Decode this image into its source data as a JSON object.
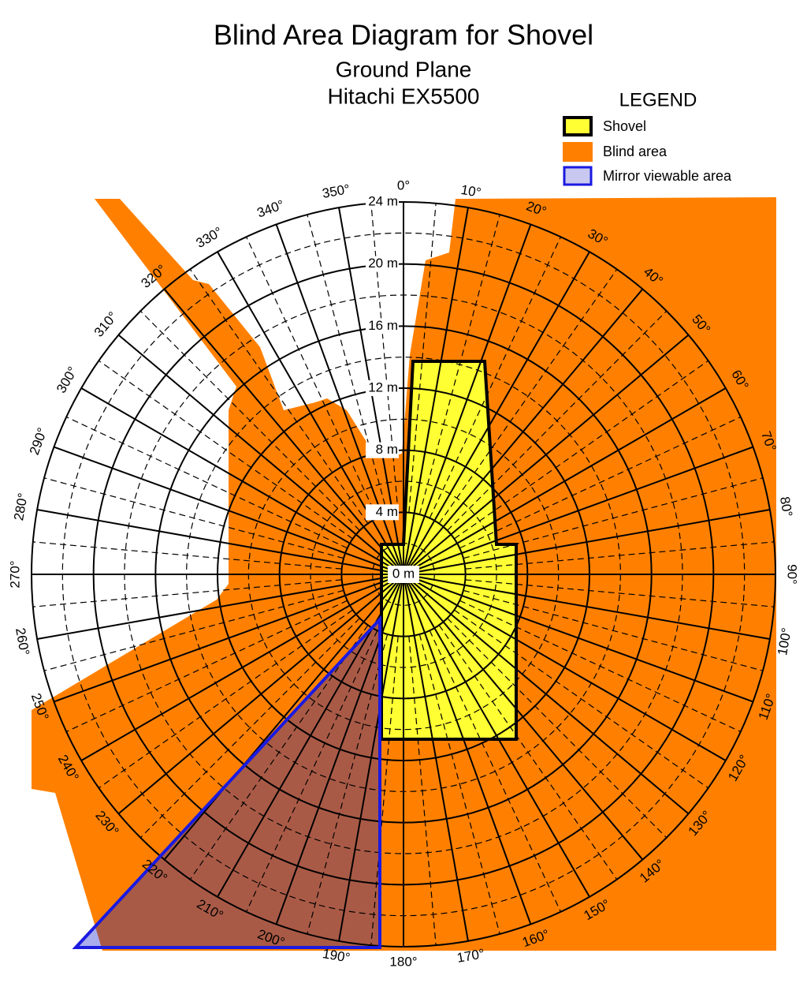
{
  "title": "Blind Area Diagram for Shovel",
  "subtitle": [
    "Ground Plane",
    "Hitachi EX5500"
  ],
  "legend": {
    "title": "LEGEND",
    "items": [
      "Shovel",
      "Blind area",
      "Mirror viewable area"
    ]
  },
  "angle_labels": [
    "0°",
    "10°",
    "20°",
    "30°",
    "40°",
    "50°",
    "60°",
    "70°",
    "80°",
    "90°",
    "100°",
    "110°",
    "120°",
    "130°",
    "140°",
    "150°",
    "160°",
    "170°",
    "180°",
    "190°",
    "200°",
    "210°",
    "220°",
    "230°",
    "240°",
    "250°",
    "260°",
    "270°",
    "280°",
    "290°",
    "300°",
    "310°",
    "320°",
    "330°",
    "340°",
    "350°"
  ],
  "radius_labels": [
    "0 m",
    "4 m",
    "8 m",
    "12 m",
    "16 m",
    "20 m",
    "24 m"
  ]
}
